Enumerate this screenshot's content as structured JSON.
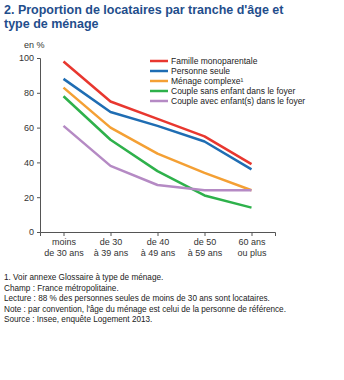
{
  "chart_data": {
    "type": "line",
    "title": "2. Proportion de locataires par tranche d'âge et\ntype de ménage",
    "y_label": "en %",
    "categories": [
      "moins\nde 30 ans",
      "de 30\nà 39 ans",
      "de 40\nà 49 ans",
      "de 50\nà 59 ans",
      "60 ans\nou plus"
    ],
    "series": [
      {
        "name": "Famille monoparentale",
        "color": "#e8372f",
        "values": [
          98,
          75,
          65,
          55,
          39
        ]
      },
      {
        "name": "Personne seule",
        "color": "#1f6db3",
        "values": [
          88,
          69,
          61,
          52,
          36
        ]
      },
      {
        "name": "Ménage complexe¹",
        "color": "#f4a034",
        "values": [
          83,
          60,
          45,
          34,
          24
        ]
      },
      {
        "name": "Couple sans enfant dans le foyer",
        "color": "#2eb14b",
        "values": [
          78,
          53,
          35,
          21,
          14
        ]
      },
      {
        "name": "Couple avec enfant(s) dans le foyer",
        "color": "#b58ac4",
        "values": [
          61,
          38,
          27,
          24,
          24
        ]
      }
    ],
    "ylim": [
      0,
      100
    ],
    "yticks": [
      0,
      20,
      40,
      60,
      80,
      100
    ],
    "grid": false,
    "legend": "top-right",
    "notes": [
      "1. Voir annexe Glossaire à type de ménage.",
      "Champ : France métropolitaine.",
      "Lecture : 88 % des personnes seules de moins de 30 ans sont locataires.",
      "Note : par convention, l'âge du ménage est celui de la personne de référence.",
      "Source : Insee, enquête Logement 2013."
    ]
  }
}
